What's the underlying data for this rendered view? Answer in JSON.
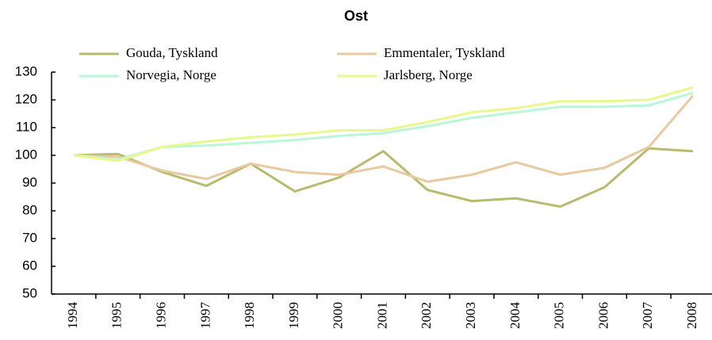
{
  "chart_data": {
    "type": "line",
    "title": "Ost",
    "categories": [
      "1994",
      "1995",
      "1996",
      "1997",
      "1998",
      "1999",
      "2000",
      "2001",
      "2002",
      "2003",
      "2004",
      "2005",
      "2006",
      "2007",
      "2008"
    ],
    "series": [
      {
        "name": "Gouda, Tyskland",
        "color": "#b8bb6e",
        "values": [
          100,
          100.5,
          94,
          89,
          97,
          87,
          92,
          101.5,
          87.5,
          83.5,
          84.5,
          81.5,
          88.5,
          102.5,
          101.5
        ]
      },
      {
        "name": "Emmentaler, Tyskland",
        "color": "#e8c9a0",
        "values": [
          100,
          99.5,
          94.5,
          91.5,
          97,
          94,
          93,
          96,
          90.5,
          93,
          97.5,
          93,
          95.5,
          103,
          121.5
        ]
      },
      {
        "name": "Norvegia, Norge",
        "color": "#b9f7d6",
        "values": [
          100,
          98.5,
          103,
          103.5,
          104.5,
          105.5,
          107,
          108,
          110.5,
          113.5,
          115.5,
          117.5,
          117.5,
          118,
          122.5
        ]
      },
      {
        "name": "Jarlsberg, Norge",
        "color": "#e6f98a",
        "values": [
          100,
          98,
          103,
          105,
          106.5,
          107.5,
          109,
          109,
          112,
          115.5,
          117,
          119.5,
          119.5,
          120,
          124.5
        ]
      }
    ],
    "ylim": [
      50,
      130
    ],
    "yticks": [
      50,
      60,
      70,
      80,
      90,
      100,
      110,
      120,
      130
    ],
    "grid": false
  }
}
